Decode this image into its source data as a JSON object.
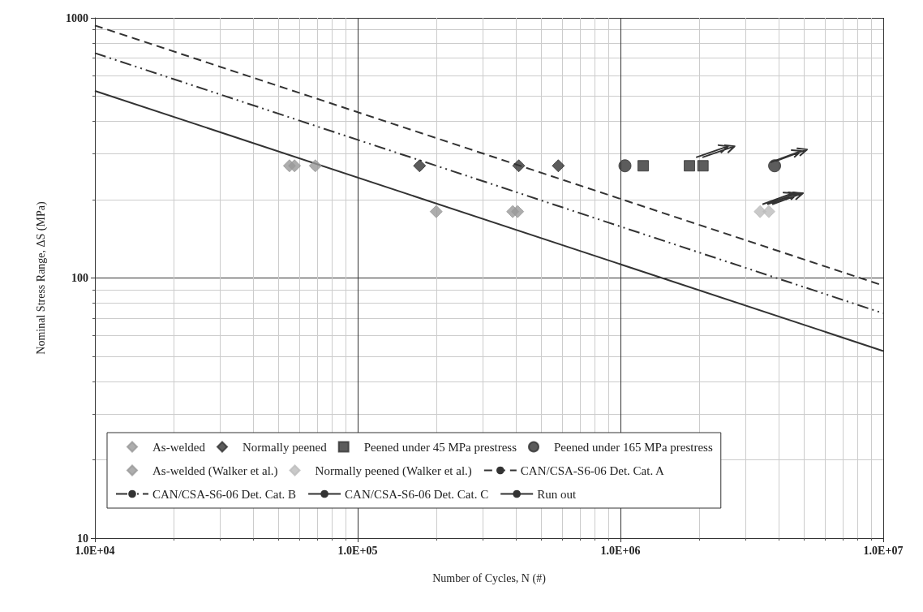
{
  "chart_data": {
    "type": "scatter",
    "xlabel": "Number of Cycles, N (#)",
    "ylabel": "Nominal Stress Range, ΔS (MPa)",
    "log": "xy",
    "grid": true,
    "legend": "bottom",
    "xlim": [
      10000,
      10000000
    ],
    "xticks": [
      {
        "value": 10000,
        "label": "1.0E+04"
      },
      {
        "value": 100000,
        "label": "1.0E+05"
      },
      {
        "value": 1000000,
        "label": "1.0E+06"
      },
      {
        "value": 10000000,
        "label": "1.0E+07"
      }
    ],
    "ylim": [
      10,
      1000
    ],
    "yticks": [
      10,
      100,
      1000
    ],
    "series": [
      {
        "name": "As-welded",
        "marker": "diamond",
        "color": "#999999",
        "x": [
          55000,
          57500,
          69000
        ],
        "values": [
          270,
          270,
          270
        ]
      },
      {
        "name": "Normally peened",
        "marker": "diamond",
        "color": "#333333",
        "x": [
          172000,
          410000,
          580000
        ],
        "values": [
          270,
          270,
          270
        ]
      },
      {
        "name": "Peened under 45 MPa prestress",
        "marker": "square",
        "color": "#333333",
        "x": [
          1220000,
          1830000,
          2060000
        ],
        "values": [
          270,
          270,
          270
        ]
      },
      {
        "name": "Peened under 165 MPa prestress",
        "marker": "circle",
        "color": "#333333",
        "x": [
          1040000,
          3860000
        ],
        "values": [
          270,
          270
        ]
      },
      {
        "name": "As-welded (Walker et al.)",
        "marker": "diamond",
        "color": "#999999",
        "x": [
          199000,
          389000,
          406000
        ],
        "values": [
          180,
          180,
          180
        ]
      },
      {
        "name": "Normally peened (Walker et al.)",
        "marker": "diamond",
        "color": "#bbbbbb",
        "x": [
          3400000,
          3670000
        ],
        "values": [
          180,
          180
        ]
      },
      {
        "name": "CAN/CSA-S6-06 Det. Cat. A",
        "type": "line",
        "marker": "none",
        "line_style": "dashed",
        "color": "#333333",
        "x": [
          10000,
          10000000
        ],
        "values": [
          935,
          93.5
        ]
      },
      {
        "name": "CAN/CSA-S6-06 Det. Cat. B",
        "type": "line",
        "marker": "none",
        "line_style": "dashdot",
        "color": "#333333",
        "x": [
          10000,
          10000000
        ],
        "values": [
          732,
          73.2
        ]
      },
      {
        "name": "CAN/CSA-S6-06 Det. Cat. C",
        "type": "line",
        "marker": "none",
        "line_style": "solid",
        "color": "#333333",
        "x": [
          10000,
          10000000
        ],
        "values": [
          524,
          52.4
        ]
      },
      {
        "name": "Run out",
        "type": "line",
        "marker": "none",
        "line_style": "solid",
        "color": "#333333",
        "x": [
          1940000,
          2570000,
          2360000,
          2570000,
          2410000,
          null,
          2050000,
          2720000,
          2500000,
          2720000,
          2560000,
          null,
          3720000,
          4880000,
          4480000,
          4880000,
          4580000,
          null,
          3910000,
          5130000,
          4710000,
          5130000,
          4810000,
          null,
          3470000,
          4540000,
          4170000,
          4540000,
          4260000,
          null,
          3620000,
          4740000,
          4360000,
          4740000,
          4450000,
          null,
          3780000,
          4950000,
          4540000,
          4950000,
          4640000
        ],
        "values": [
          291,
          321,
          324,
          321,
          303,
          null,
          291,
          321,
          324,
          321,
          303,
          null,
          278,
          308,
          310,
          308,
          291,
          null,
          282,
          312,
          315,
          312,
          295,
          null,
          192,
          212,
          213,
          212,
          200,
          null,
          192,
          212,
          213,
          212,
          200,
          null,
          192,
          212,
          213,
          212,
          200
        ]
      }
    ]
  }
}
